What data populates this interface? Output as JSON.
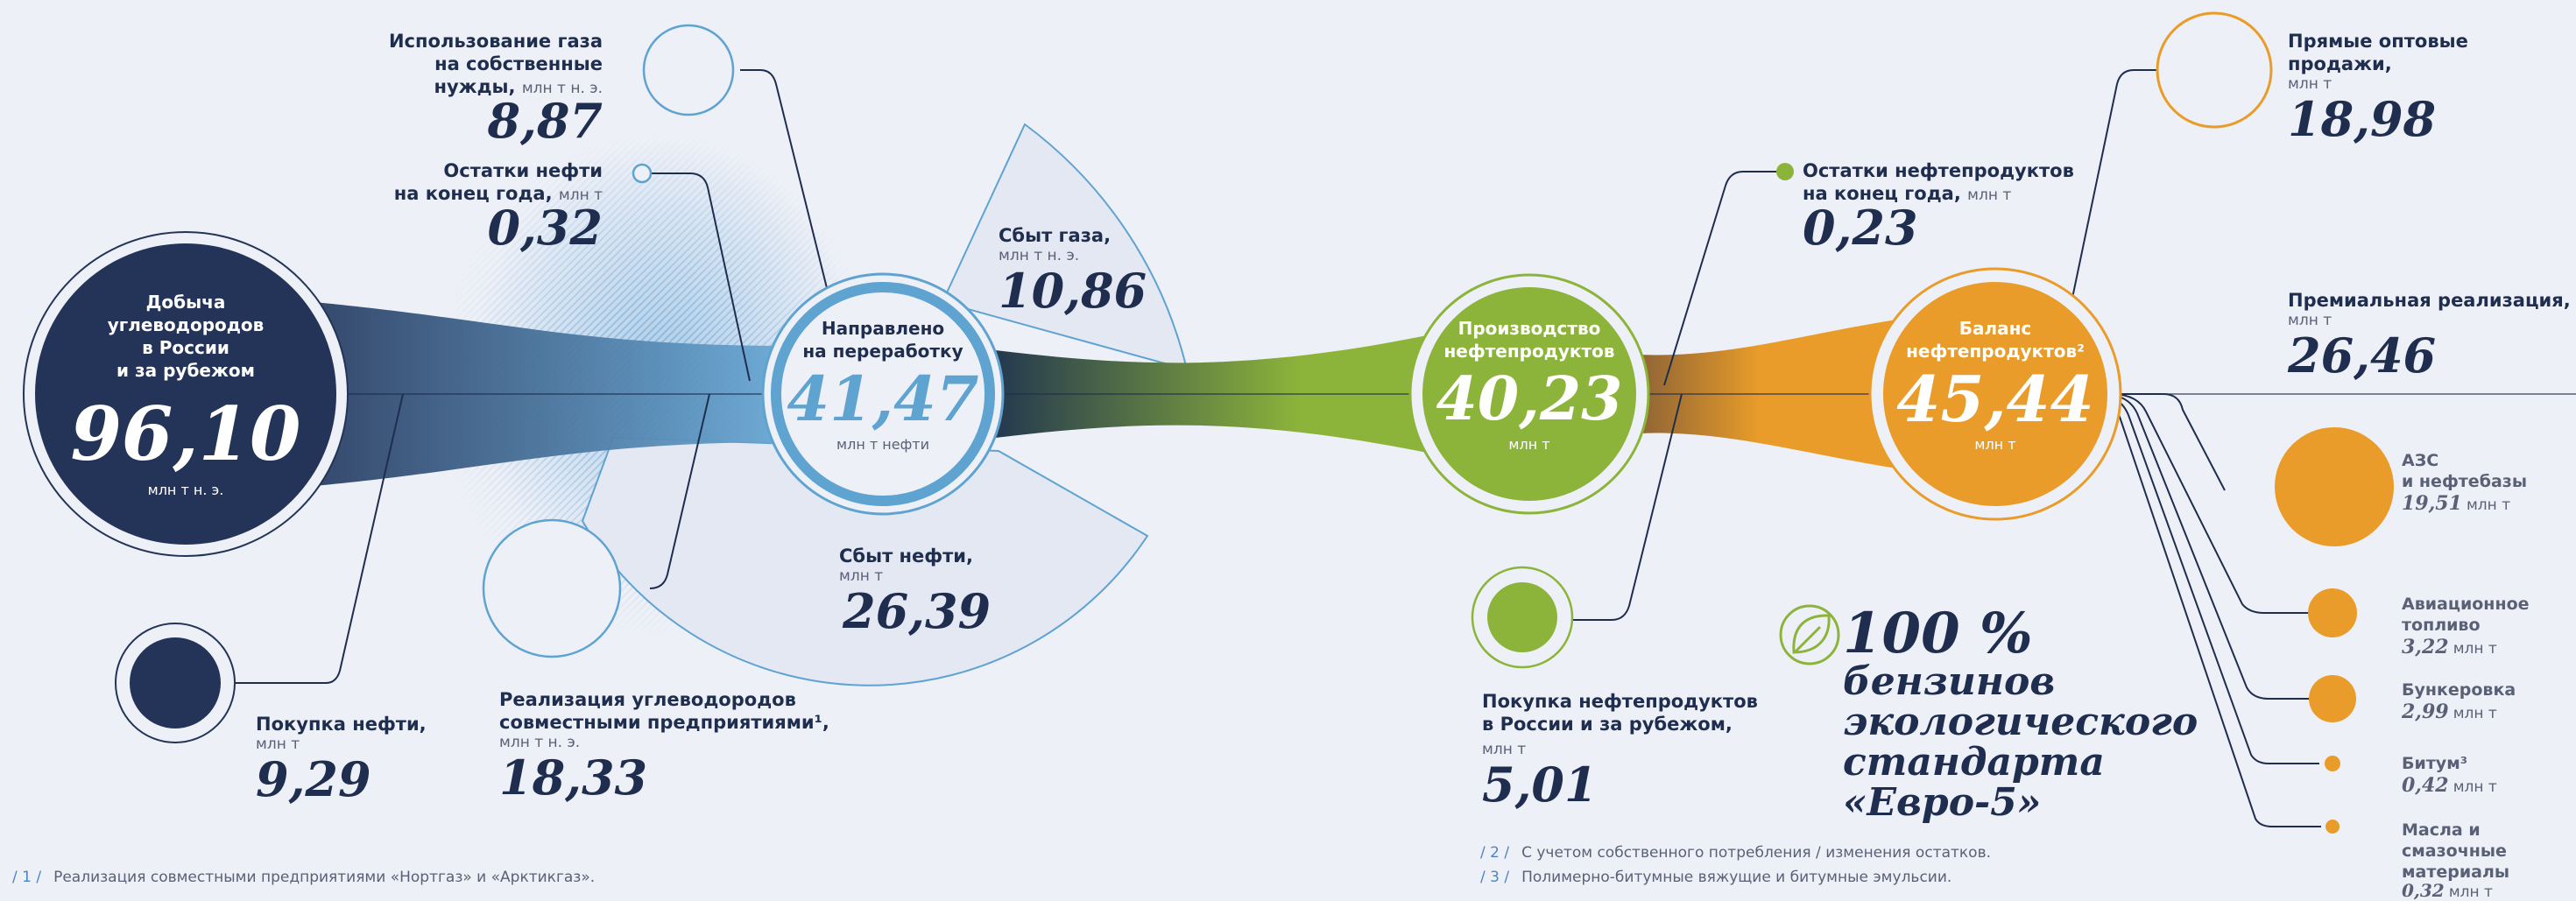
{
  "production": {
    "title_lines": [
      "Добыча",
      "углеводородов",
      "в России",
      "и за рубежом"
    ],
    "value": "96,10",
    "unit": "млн т н. э."
  },
  "refining": {
    "title_lines": [
      "Направлено",
      "на переработку"
    ],
    "value": "41,47",
    "unit": "млн т нефти"
  },
  "products": {
    "title_lines": [
      "Производство",
      "нефтепродуктов"
    ],
    "value": "40,23",
    "unit": "млн т"
  },
  "balance": {
    "title_lines": [
      "Баланс",
      "нефтепродуктов²"
    ],
    "value": "45,44",
    "unit": "млн т"
  },
  "gas_own": {
    "label_lines": [
      "Использование газа",
      "на собственные"
    ],
    "label_last": "нужды,",
    "unit": "млн т н. э.",
    "value": "8,87"
  },
  "oil_stock": {
    "label_first": "Остатки нефти",
    "label_last": "на конец года,",
    "unit": "млн т",
    "value": "0,32"
  },
  "gas_sales": {
    "label": "Сбыт газа,",
    "unit": "млн т н. э.",
    "value": "10,86"
  },
  "oil_sales": {
    "label": "Сбыт нефти,",
    "unit": "млн т",
    "value": "26,39"
  },
  "oil_purchase": {
    "label": "Покупка нефти,",
    "unit": "млн т",
    "value": "9,29"
  },
  "jv_sales": {
    "label_lines": [
      "Реализация углеводородов",
      "совместными предприятиями¹,"
    ],
    "unit": "млн т н. э.",
    "value": "18,33"
  },
  "product_stock": {
    "label_first": "Остатки нефтепродуктов",
    "label_last": "на конец года,",
    "unit": "млн т",
    "value": "0,23"
  },
  "product_purchase": {
    "label_lines": [
      "Покупка нефтепродуктов",
      "в России и за рубежом,"
    ],
    "unit": "млн т",
    "value": "5,01"
  },
  "wholesale": {
    "label_lines": [
      "Прямые оптовые",
      "продажи,"
    ],
    "unit": "млн т",
    "value": "18,98"
  },
  "premium": {
    "label": "Премиальная реализация,",
    "unit": "млн т",
    "value": "26,46"
  },
  "premium_items": [
    {
      "label_lines": [
        "АЗС",
        "и нефтебазы"
      ],
      "value": "19,51",
      "unit": "млн т"
    },
    {
      "label_lines": [
        "Авиационное",
        "топливо"
      ],
      "value": "3,22",
      "unit": "млн т"
    },
    {
      "label_lines": [
        "Бункеровка"
      ],
      "value": "2,99",
      "unit": "млн т"
    },
    {
      "label_lines": [
        "Битум³"
      ],
      "value": "0,42",
      "unit": "млн т"
    },
    {
      "label_lines": [
        "Масла и смазочные",
        "материалы"
      ],
      "value": "0,32",
      "unit": "млн т"
    }
  ],
  "slogan": {
    "line1": "100 %",
    "line2": "бензинов",
    "line3": "экологического",
    "line4": "стандарта",
    "line5": "«Евро-5»"
  },
  "footnotes": [
    {
      "num": "/ 1 /",
      "text": "Реализация совместными предприятиями «Нортгаз» и «Арктикгаз»."
    },
    {
      "num": "/ 2 /",
      "text": "С учетом собственного потребления / изменения остатков."
    },
    {
      "num": "/ 3 /",
      "text": "Полимерно-битумные вяжущие и битумные эмульсии."
    }
  ],
  "colors": {
    "navy": "#243458",
    "blue": "#5fa3d1",
    "green": "#8db43a",
    "orange": "#e99c29",
    "bg": "#eef0f7"
  }
}
